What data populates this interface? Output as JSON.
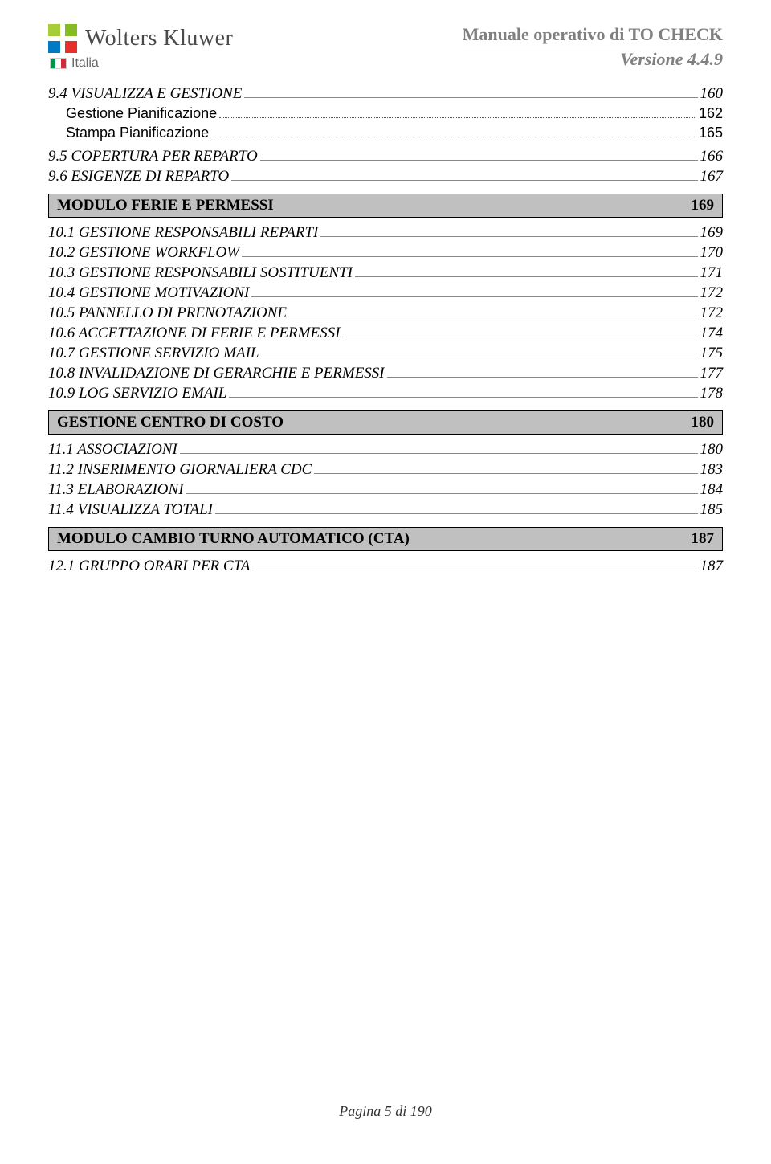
{
  "header": {
    "brand": "Wolters Kluwer",
    "sub_brand": "Italia",
    "doc_title": "Manuale operativo di  TO CHECK",
    "doc_version": "Versione 4.4.9"
  },
  "toc": {
    "pre_section": [
      {
        "label": "9.4   VISUALIZZA E GESTIONE",
        "page": "160",
        "style": "italic",
        "leader": "solid"
      },
      {
        "label": "Gestione Pianificazione",
        "page": "162",
        "style": "sub",
        "leader": "dotted",
        "indent": true
      },
      {
        "label": "Stampa  Pianificazione",
        "page": "165",
        "style": "sub",
        "leader": "dotted",
        "indent": true
      },
      {
        "label": "9.5   COPERTURA PER REPARTO",
        "page": "166",
        "style": "italic",
        "leader": "solid",
        "gap": true
      },
      {
        "label": "9.6   ESIGENZE DI REPARTO",
        "page": "167",
        "style": "italic",
        "leader": "solid"
      }
    ],
    "sections": [
      {
        "title": "MODULO FERIE E PERMESSI",
        "page": "169",
        "items": [
          {
            "label": "10.1  GESTIONE RESPONSABILI REPARTI",
            "page": "169"
          },
          {
            "label": "10.2  GESTIONE WORKFLOW",
            "page": "170"
          },
          {
            "label": "10.3  GESTIONE RESPONSABILI SOSTITUENTI",
            "page": "171"
          },
          {
            "label": "10.4  GESTIONE MOTIVAZIONI",
            "page": "172"
          },
          {
            "label": "10.5  PANNELLO DI PRENOTAZIONE",
            "page": "172"
          },
          {
            "label": "10.6  ACCETTAZIONE DI FERIE E PERMESSI",
            "page": "174"
          },
          {
            "label": "10.7  GESTIONE SERVIZIO MAIL",
            "page": "175"
          },
          {
            "label": "10.8  INVALIDAZIONE DI GERARCHIE E PERMESSI",
            "page": "177"
          },
          {
            "label": "10.9  LOG SERVIZIO EMAIL",
            "page": "178"
          }
        ]
      },
      {
        "title": "GESTIONE CENTRO DI COSTO",
        "page": "180",
        "items": [
          {
            "label": "11.1  ASSOCIAZIONI",
            "page": "180"
          },
          {
            "label": "11.2  INSERIMENTO GIORNALIERA  CDC",
            "page": "183"
          },
          {
            "label": "11.3  ELABORAZIONI",
            "page": "184"
          },
          {
            "label": "11.4  VISUALIZZA TOTALI",
            "page": "185"
          }
        ]
      },
      {
        "title": "MODULO CAMBIO TURNO AUTOMATICO (CTA)",
        "page": "187",
        "items": [
          {
            "label": "12.1  GRUPPO ORARI PER CTA",
            "page": "187"
          }
        ]
      }
    ]
  },
  "footer": "Pagina 5 di 190"
}
